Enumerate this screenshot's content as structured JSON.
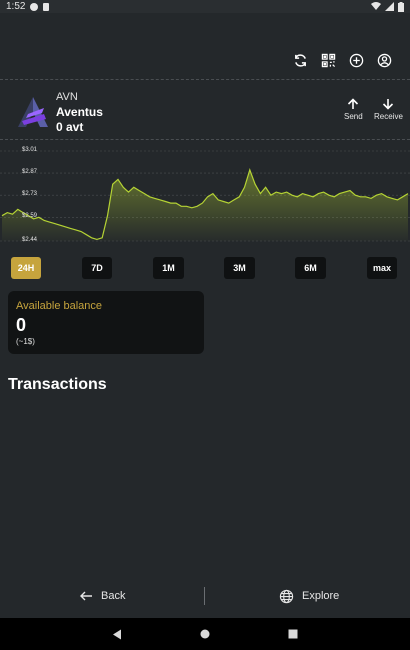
{
  "status_bar": {
    "time": "1:52"
  },
  "toolbar": {
    "icons": [
      "refresh-icon",
      "qr-code-icon",
      "add-icon",
      "account-icon"
    ]
  },
  "token": {
    "symbol": "AVN",
    "name": "Aventus",
    "balance": "0 avt"
  },
  "actions": {
    "send_label": "Send",
    "receive_label": "Receive"
  },
  "chart_data": {
    "type": "area",
    "title": "",
    "xlabel": "",
    "ylabel": "",
    "y_ticks": [
      "$3.01",
      "$2.87",
      "$2.73",
      "$2.59",
      "$2.44"
    ],
    "ylim": [
      2.44,
      3.01
    ],
    "color": "#b5d334",
    "series": [
      {
        "values": [
          2.6,
          2.62,
          2.61,
          2.64,
          2.62,
          2.6,
          2.58,
          2.59,
          2.57,
          2.56,
          2.55,
          2.54,
          2.53,
          2.52,
          2.51,
          2.5,
          2.48,
          2.46,
          2.45,
          2.46,
          2.6,
          2.8,
          2.83,
          2.78,
          2.75,
          2.78,
          2.76,
          2.74,
          2.72,
          2.71,
          2.7,
          2.69,
          2.68,
          2.68,
          2.66,
          2.66,
          2.65,
          2.66,
          2.68,
          2.72,
          2.74,
          2.7,
          2.69,
          2.68,
          2.7,
          2.72,
          2.78,
          2.89,
          2.8,
          2.74,
          2.78,
          2.73,
          2.75,
          2.74,
          2.75,
          2.73,
          2.72,
          2.74,
          2.73,
          2.72,
          2.74,
          2.75,
          2.73,
          2.72,
          2.74,
          2.75,
          2.76,
          2.73,
          2.72,
          2.72,
          2.71,
          2.73,
          2.74,
          2.72,
          2.71,
          2.7,
          2.72,
          2.74
        ]
      }
    ]
  },
  "ranges": [
    "24H",
    "7D",
    "1M",
    "3M",
    "6M",
    "max"
  ],
  "active_range": "24H",
  "balance_card": {
    "label": "Available balance",
    "value": "0",
    "fiat": "(~1$)"
  },
  "transactions_title": "Transactions",
  "bottom_nav": {
    "back_label": "Back",
    "explore_label": "Explore"
  },
  "colors": {
    "accent": "#c6a43d",
    "chart_line": "#b5d334",
    "background": "#24282b",
    "card": "#111314"
  }
}
